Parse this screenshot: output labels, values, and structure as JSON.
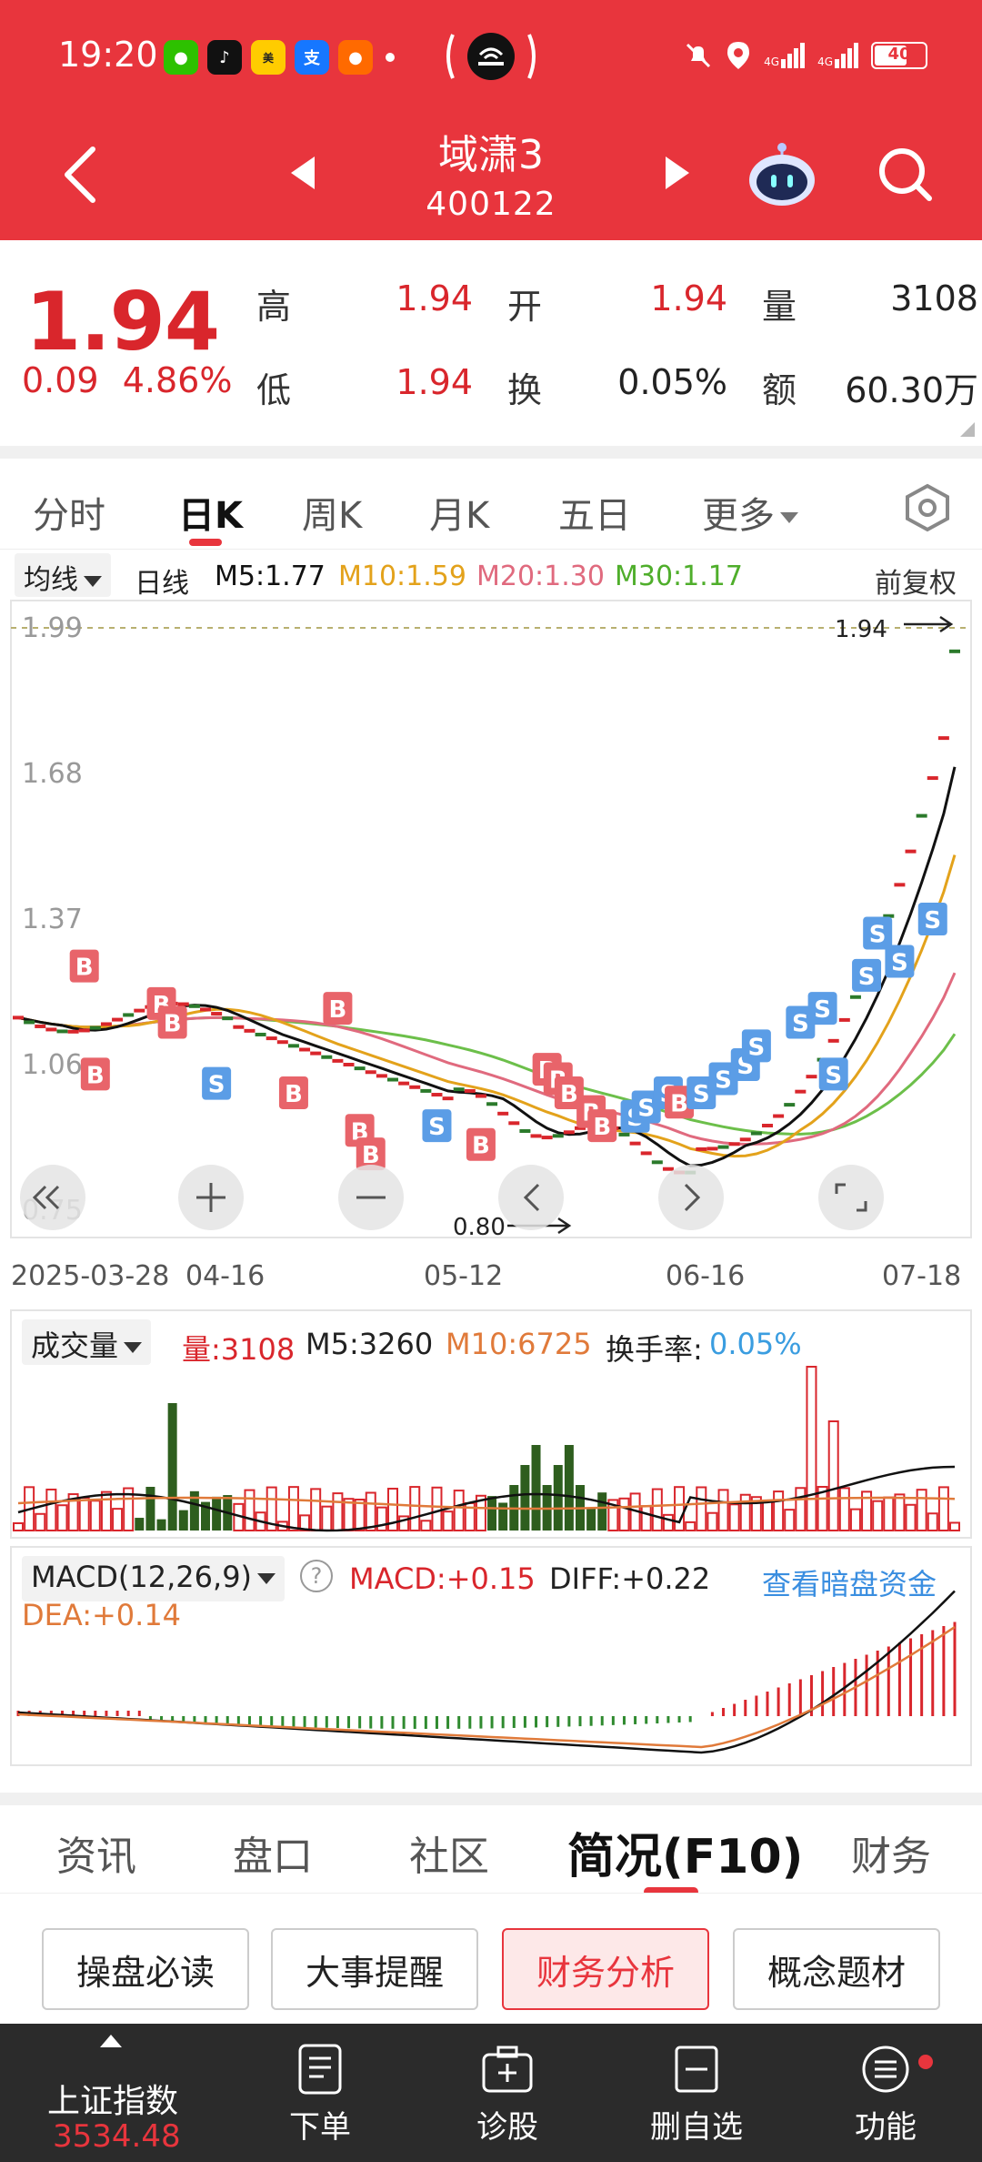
{
  "status": {
    "time": "19:20",
    "net1": "4G",
    "net2": "4G",
    "battery": "40"
  },
  "header": {
    "name": "域潇3",
    "code": "400122"
  },
  "quote": {
    "price": "1.94",
    "change": "0.09",
    "change_pct": "4.86%",
    "high_label": "高",
    "high": "1.94",
    "open_label": "开",
    "open": "1.94",
    "volume_label": "量",
    "volume": "3108",
    "low_label": "低",
    "low": "1.94",
    "turnover_label": "换",
    "turnover": "0.05%",
    "amount_label": "额",
    "amount": "60.30万"
  },
  "period_tabs": [
    "分时",
    "日K",
    "周K",
    "月K",
    "五日",
    "更多"
  ],
  "ma_bar": {
    "select": "均线",
    "period": "日线",
    "m5": "M5:1.77",
    "m10": "M10:1.59",
    "m20": "M20:1.30",
    "m30": "M30:1.17",
    "adjust": "前复权"
  },
  "kline": {
    "y_ticks": [
      "1.99",
      "1.68",
      "1.37",
      "1.06",
      "0.75"
    ],
    "x_labels": [
      "2025-03-28",
      "04-16",
      "05-12",
      "06-16",
      "07-18"
    ],
    "high_mark": "1.94",
    "low_mark": "0.80",
    "b_label": "B",
    "s_label": "S"
  },
  "volume": {
    "select": "成交量",
    "vol": "量:3108",
    "m5": "M5:3260",
    "m10": "M10:6725",
    "turnover_label": "换手率:",
    "turnover_val": "0.05%"
  },
  "macd": {
    "select": "MACD(12,26,9)",
    "help": "?",
    "macd": "MACD:+0.15",
    "diff": "DIFF:+0.22",
    "link": "查看暗盘资金",
    "dea": "DEA:+0.14"
  },
  "info_tabs": [
    "资讯",
    "盘口",
    "社区",
    "简况(F10)",
    "财务"
  ],
  "sub_buttons": [
    "操盘必读",
    "大事提醒",
    "财务分析",
    "概念题材"
  ],
  "bottom_nav": {
    "index_name": "上证指数",
    "index_value": "3534.48",
    "items": [
      "下单",
      "诊股",
      "删自选",
      "功能"
    ]
  },
  "colors": {
    "up": "#d9262c",
    "down": "#2e5e1e",
    "ma5": "#111111",
    "ma10": "#e3a21b",
    "ma20": "#e06a7e",
    "ma30": "#6cbf4a",
    "buy": "#e8646a",
    "sell": "#5b9de6"
  }
}
